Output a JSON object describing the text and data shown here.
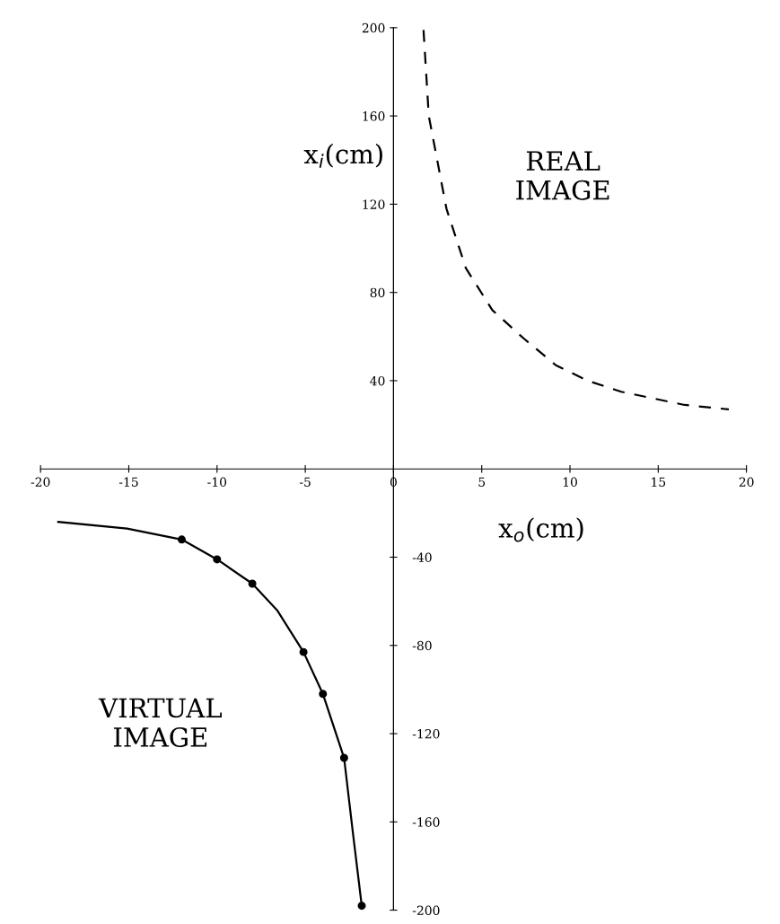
{
  "chart_data": {
    "type": "line",
    "xlabel": "x$_{o}$(cm)",
    "ylabel": "x$_{i}$(cm)",
    "xlim": [
      -20,
      20
    ],
    "xticks": [
      -20,
      -15,
      -10,
      -5,
      0,
      5,
      10,
      15,
      20
    ],
    "ylim": [
      -200,
      200
    ],
    "yticks": [
      40,
      80,
      120,
      160,
      200
    ],
    "y2lim": [
      -200,
      200
    ],
    "y2ticks": [
      -40,
      -80,
      -120,
      -160,
      -200
    ],
    "grid": false,
    "legend": false,
    "annotations": [
      "REAL\nIMAGE",
      "VIRTUAL\nIMAGE"
    ],
    "series": [
      {
        "line_style": "dashed",
        "color": "#000000",
        "x": [
          1.7,
          2.0,
          3.0,
          4.1,
          5.6,
          7.4,
          9.2,
          11.0,
          12.9,
          14.7,
          16.5,
          19.0
        ],
        "values": [
          199,
          160,
          118,
          91,
          72,
          59,
          47,
          40,
          35,
          32,
          29,
          27
        ]
      },
      {
        "line_style": "solid",
        "color": "#000000",
        "x": [
          -19.0,
          -15.1,
          -12.0,
          -10.0,
          -8.0,
          -6.6,
          -5.1,
          -4.0,
          -2.8,
          -2.3,
          -1.8
        ],
        "values": [
          -24,
          -27,
          -32,
          -41,
          -52,
          -64,
          -83,
          -102,
          -131,
          -165,
          -198
        ]
      },
      {
        "type": "scatter",
        "marker": "circle",
        "color": "#000000",
        "x": [
          -12.0,
          -10.0,
          -8.0,
          -5.1,
          -4.0,
          -2.8,
          -1.8
        ],
        "values": [
          -32,
          -41,
          -52,
          -83,
          -102,
          -131,
          -198
        ]
      }
    ]
  }
}
